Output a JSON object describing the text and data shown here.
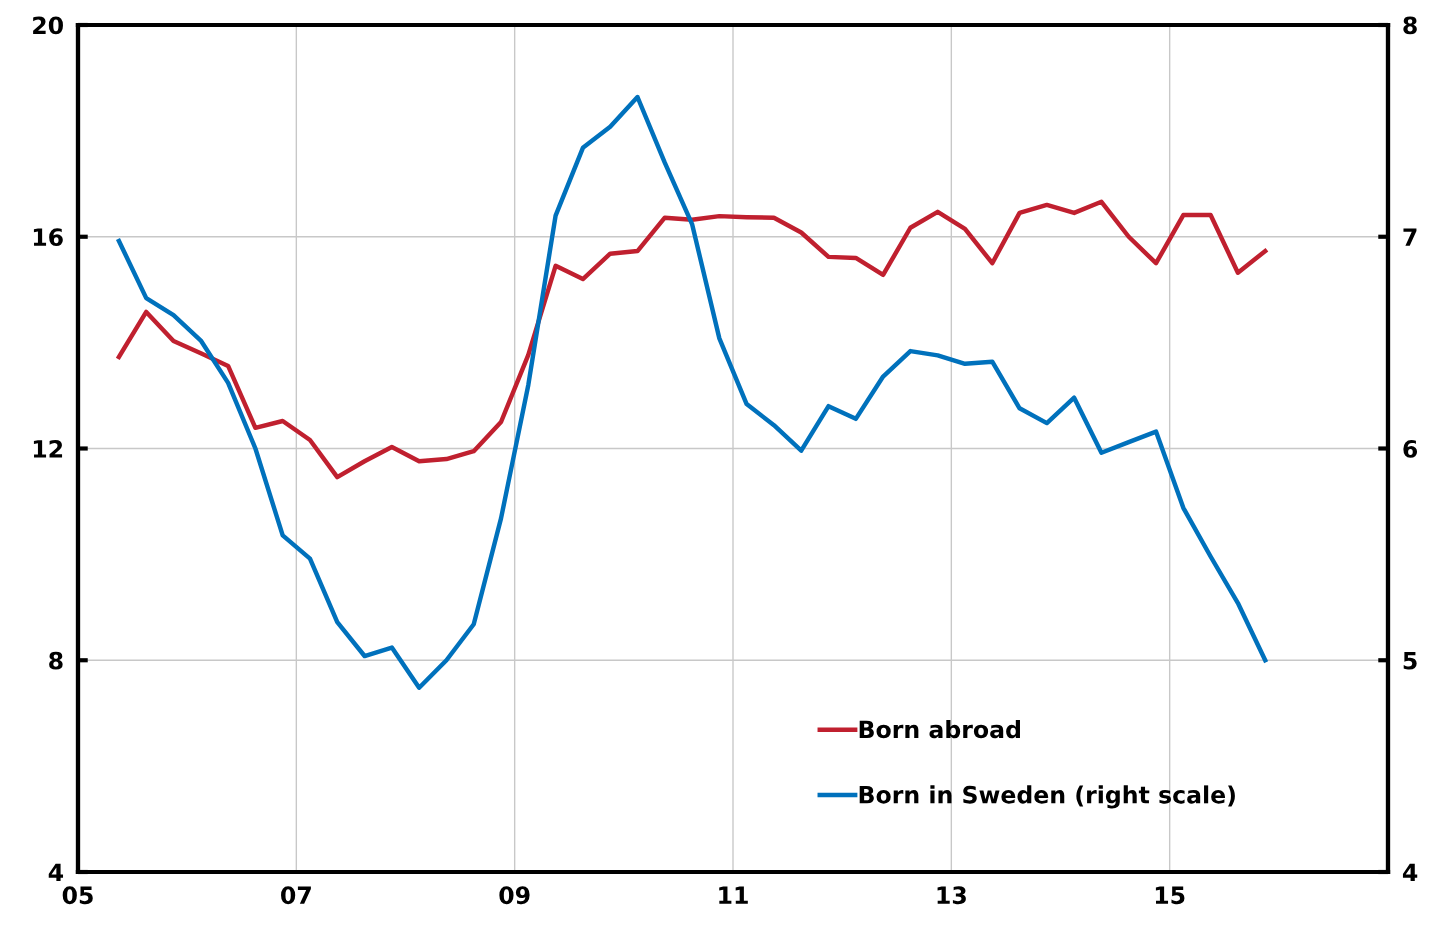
{
  "chart_data": {
    "type": "line",
    "x": [
      5.375,
      5.625,
      5.875,
      6.125,
      6.375,
      6.625,
      6.875,
      7.125,
      7.375,
      7.625,
      7.875,
      8.125,
      8.375,
      8.625,
      8.875,
      9.125,
      9.375,
      9.625,
      9.875,
      10.125,
      10.375,
      10.625,
      10.875,
      11.125,
      11.375,
      11.625,
      11.875,
      12.125,
      12.375,
      12.625,
      12.875,
      13.125,
      13.375,
      13.625,
      13.875,
      14.125,
      14.375,
      14.625,
      14.875,
      15.125,
      15.375,
      15.625,
      15.875
    ],
    "series": [
      {
        "name": "Born abroad",
        "color": "#c0202f",
        "values": [
          13.73,
          14.58,
          14.03,
          13.8,
          13.56,
          12.39,
          12.52,
          12.16,
          11.46,
          11.76,
          12.03,
          11.76,
          11.8,
          11.95,
          12.5,
          13.77,
          15.45,
          15.2,
          15.68,
          15.73,
          16.36,
          16.32,
          16.39,
          16.37,
          16.36,
          16.08,
          15.62,
          15.6,
          15.28,
          16.17,
          16.47,
          16.15,
          15.5,
          16.45,
          16.6,
          16.45,
          16.66,
          16.0,
          15.5,
          16.41,
          16.41,
          15.32,
          15.73
        ]
      },
      {
        "name": "Born in Sweden (right scale)",
        "color": "#0071bc",
        "axis": "y2",
        "values": [
          6.98,
          6.71,
          6.63,
          6.51,
          6.31,
          6.0,
          5.59,
          5.48,
          5.18,
          5.02,
          5.06,
          4.87,
          5.0,
          5.17,
          5.67,
          6.3,
          7.1,
          7.42,
          7.52,
          7.66,
          7.35,
          7.06,
          6.52,
          6.21,
          6.11,
          5.99,
          6.2,
          6.14,
          6.34,
          6.46,
          6.44,
          6.4,
          6.41,
          6.19,
          6.12,
          6.24,
          5.98,
          6.03,
          6.08,
          5.72,
          5.49,
          5.27,
          5.0
        ]
      }
    ],
    "xlim": [
      5,
      17
    ],
    "xticks": [
      {
        "value": 5,
        "label": "05"
      },
      {
        "value": 7,
        "label": "07"
      },
      {
        "value": 9,
        "label": "09"
      },
      {
        "value": 11,
        "label": "11"
      },
      {
        "value": 13,
        "label": "13"
      },
      {
        "value": 15,
        "label": "15"
      }
    ],
    "ylim": [
      4,
      20
    ],
    "yticks": [
      4,
      8,
      12,
      16,
      20
    ],
    "y2lim": [
      4,
      8
    ],
    "y2ticks": [
      4,
      5,
      6,
      7,
      8
    ],
    "grid": true,
    "legend": "bottom",
    "marker": "none",
    "line_style": "solid"
  }
}
